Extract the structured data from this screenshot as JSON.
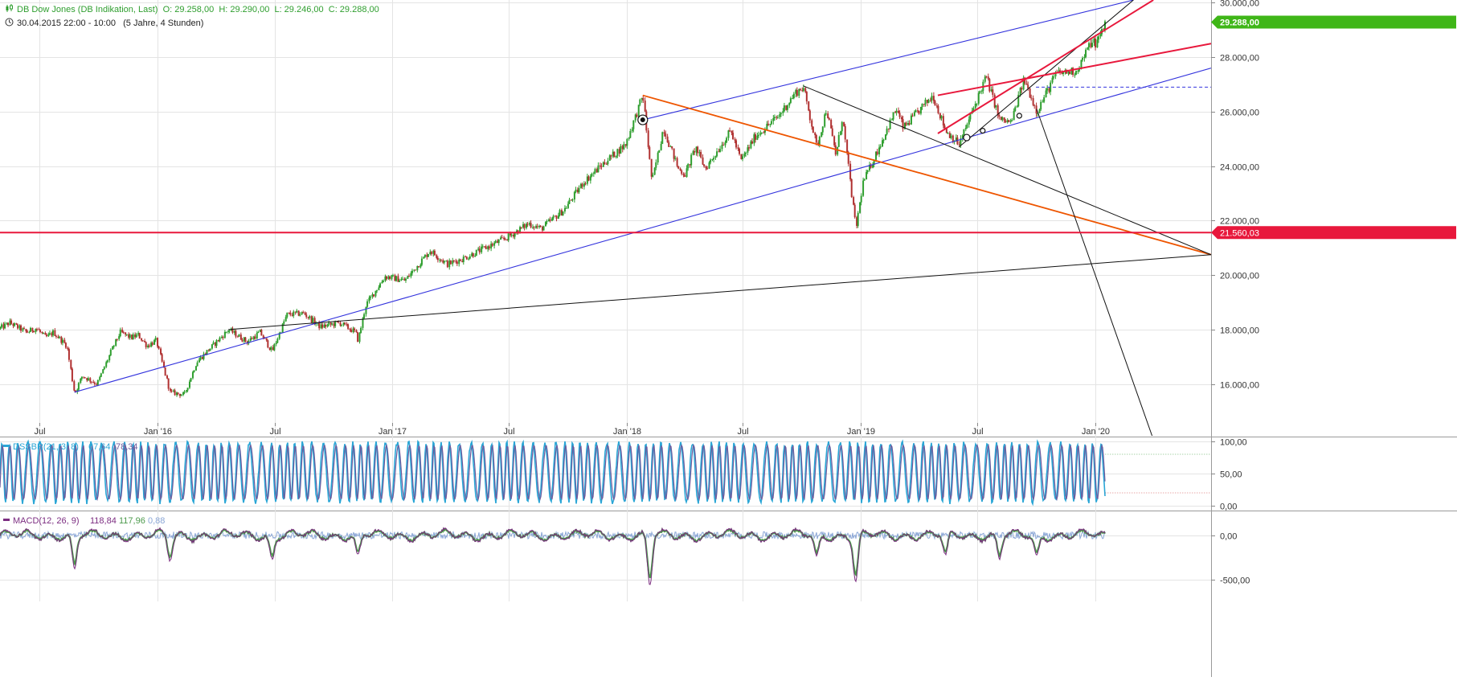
{
  "header": {
    "title": "DB Dow Jones (DB Indikation, Last)",
    "open": "O: 29.258,00",
    "high": "H: 29.290,00",
    "low": "L: 29.246,00",
    "close": "C: 29.288,00",
    "period": "30.04.2015 22:00 - 10:00",
    "period_detail": "(5 Jahre, 4 Stunden)"
  },
  "colors": {
    "up": "#2e9e2e",
    "down": "#b03030",
    "blue_line": "#3333dd",
    "red_line": "#e8183c",
    "orange_line": "#ee5500",
    "black_line": "#111111",
    "dss": "#2aa6d6",
    "dss_signal": "#6d5a9c",
    "macd": "#7b2c80",
    "macd_signal": "#4c9a4c",
    "macd_hist": "#8aa6d6",
    "price_tag": "#3fb618",
    "level_tag": "#e8183c"
  },
  "chart_data": [
    {
      "type": "line",
      "title": "DB Dow Jones (DB Indikation, Last)",
      "x_labels": [
        "Jul",
        "Jan '16",
        "Jul",
        "Jan '17",
        "Jul",
        "Jan '18",
        "Jul",
        "Jan '19",
        "Jul",
        "Jan '20"
      ],
      "x_label_dates": [
        "2015-07-01",
        "2016-01-01",
        "2016-07-01",
        "2017-01-01",
        "2017-07-01",
        "2018-01-01",
        "2018-07-01",
        "2019-01-01",
        "2019-07-01",
        "2020-01-01"
      ],
      "y_ticks": [
        "16.000,00",
        "18.000,00",
        "20.000,00",
        "22.000,00",
        "24.000,00",
        "26.000,00",
        "28.000,00",
        "30.000,00"
      ],
      "y_tick_values": [
        16000,
        18000,
        20000,
        22000,
        24000,
        26000,
        28000,
        30000
      ],
      "ylim": [
        14100,
        30100
      ],
      "xlim": [
        "2015-04-30",
        "2020-06-30"
      ],
      "grid": true,
      "series": [
        {
          "values": [
            {
              "x": "2015-04-30",
              "y": 18050
            },
            {
              "x": "2015-05-15",
              "y": 18250
            },
            {
              "x": "2015-06-10",
              "y": 17900
            },
            {
              "x": "2015-06-25",
              "y": 18050
            },
            {
              "x": "2015-07-10",
              "y": 17700
            },
            {
              "x": "2015-07-22",
              "y": 17900
            },
            {
              "x": "2015-08-12",
              "y": 17400
            },
            {
              "x": "2015-08-24",
              "y": 15650
            },
            {
              "x": "2015-09-05",
              "y": 16300
            },
            {
              "x": "2015-09-28",
              "y": 16000
            },
            {
              "x": "2015-10-20",
              "y": 17200
            },
            {
              "x": "2015-11-03",
              "y": 17900
            },
            {
              "x": "2015-11-20",
              "y": 17700
            },
            {
              "x": "2015-12-01",
              "y": 17800
            },
            {
              "x": "2015-12-15",
              "y": 17400
            },
            {
              "x": "2015-12-29",
              "y": 17600
            },
            {
              "x": "2016-01-12",
              "y": 16400
            },
            {
              "x": "2016-01-20",
              "y": 15700
            },
            {
              "x": "2016-02-11",
              "y": 15600
            },
            {
              "x": "2016-03-01",
              "y": 16800
            },
            {
              "x": "2016-04-20",
              "y": 18000
            },
            {
              "x": "2016-05-19",
              "y": 17550
            },
            {
              "x": "2016-06-08",
              "y": 17900
            },
            {
              "x": "2016-06-27",
              "y": 17200
            },
            {
              "x": "2016-07-20",
              "y": 18550
            },
            {
              "x": "2016-08-15",
              "y": 18600
            },
            {
              "x": "2016-09-10",
              "y": 18100
            },
            {
              "x": "2016-10-10",
              "y": 18250
            },
            {
              "x": "2016-11-04",
              "y": 17900
            },
            {
              "x": "2016-11-08",
              "y": 17600
            },
            {
              "x": "2016-11-20",
              "y": 18900
            },
            {
              "x": "2016-12-20",
              "y": 19950
            },
            {
              "x": "2017-01-20",
              "y": 19800
            },
            {
              "x": "2017-02-28",
              "y": 20900
            },
            {
              "x": "2017-03-27",
              "y": 20400
            },
            {
              "x": "2017-04-20",
              "y": 20600
            },
            {
              "x": "2017-05-30",
              "y": 21050
            },
            {
              "x": "2017-06-30",
              "y": 21400
            },
            {
              "x": "2017-08-01",
              "y": 21900
            },
            {
              "x": "2017-08-20",
              "y": 21700
            },
            {
              "x": "2017-09-25",
              "y": 22400
            },
            {
              "x": "2017-10-25",
              "y": 23400
            },
            {
              "x": "2017-11-30",
              "y": 24200
            },
            {
              "x": "2017-12-30",
              "y": 24800
            },
            {
              "x": "2018-01-26",
              "y": 26600
            },
            {
              "x": "2018-02-05",
              "y": 24300
            },
            {
              "x": "2018-02-09",
              "y": 23400
            },
            {
              "x": "2018-02-27",
              "y": 25400
            },
            {
              "x": "2018-03-22",
              "y": 23900
            },
            {
              "x": "2018-04-02",
              "y": 23700
            },
            {
              "x": "2018-04-18",
              "y": 24700
            },
            {
              "x": "2018-05-03",
              "y": 23900
            },
            {
              "x": "2018-06-12",
              "y": 25300
            },
            {
              "x": "2018-06-28",
              "y": 24200
            },
            {
              "x": "2018-07-20",
              "y": 25100
            },
            {
              "x": "2018-08-24",
              "y": 25800
            },
            {
              "x": "2018-09-21",
              "y": 26700
            },
            {
              "x": "2018-10-03",
              "y": 26900
            },
            {
              "x": "2018-10-24",
              "y": 24700
            },
            {
              "x": "2018-11-08",
              "y": 26100
            },
            {
              "x": "2018-11-23",
              "y": 24400
            },
            {
              "x": "2018-12-03",
              "y": 25800
            },
            {
              "x": "2018-12-24",
              "y": 21700
            },
            {
              "x": "2019-01-04",
              "y": 23400
            },
            {
              "x": "2019-02-25",
              "y": 26100
            },
            {
              "x": "2019-03-08",
              "y": 25400
            },
            {
              "x": "2019-04-23",
              "y": 26600
            },
            {
              "x": "2019-05-13",
              "y": 25300
            },
            {
              "x": "2019-06-03",
              "y": 24800
            },
            {
              "x": "2019-07-15",
              "y": 27300
            },
            {
              "x": "2019-08-05",
              "y": 25700
            },
            {
              "x": "2019-08-23",
              "y": 25600
            },
            {
              "x": "2019-09-12",
              "y": 27200
            },
            {
              "x": "2019-10-02",
              "y": 26000
            },
            {
              "x": "2019-11-01",
              "y": 27400
            },
            {
              "x": "2019-12-03",
              "y": 27500
            },
            {
              "x": "2019-12-27",
              "y": 28600
            },
            {
              "x": "2020-01-03",
              "y": 28500
            },
            {
              "x": "2020-01-14",
              "y": 29100
            },
            {
              "x": "2020-01-17",
              "y": 29288
            }
          ]
        }
      ],
      "price_tag": {
        "value": 29288,
        "label": "29.288,00"
      },
      "horizontal_levels": [
        {
          "value": 21560.03,
          "label": "21.560,03",
          "color": "red",
          "style": "solid"
        },
        {
          "value": 26900,
          "label": "",
          "color": "blue",
          "style": "dashed",
          "from": "2019-10-01"
        }
      ],
      "trendlines": [
        {
          "color": "blue",
          "points": [
            {
              "x": "2015-08-24",
              "y": 15700
            },
            {
              "x": "2020-06-30",
              "y": 27600
            }
          ]
        },
        {
          "color": "blue",
          "points": [
            {
              "x": "2018-01-26",
              "y": 25700
            },
            {
              "x": "2020-03-01",
              "y": 30100
            }
          ]
        },
        {
          "color": "orange",
          "points": [
            {
              "x": "2018-01-26",
              "y": 26600
            },
            {
              "x": "2020-06-30",
              "y": 20750
            }
          ]
        },
        {
          "color": "black",
          "points": [
            {
              "x": "2016-04-20",
              "y": 18000
            },
            {
              "x": "2020-06-30",
              "y": 20750
            }
          ]
        },
        {
          "color": "black",
          "points": [
            {
              "x": "2018-10-03",
              "y": 26950
            },
            {
              "x": "2020-06-30",
              "y": 20750
            }
          ]
        },
        {
          "color": "black",
          "points": [
            {
              "x": "2019-06-03",
              "y": 24700
            },
            {
              "x": "2020-03-01",
              "y": 30100
            }
          ]
        },
        {
          "color": "black",
          "points": [
            {
              "x": "2019-10-02",
              "y": 26100
            },
            {
              "x": "2020-03-30",
              "y": 14100
            }
          ]
        },
        {
          "color": "red",
          "points": [
            {
              "x": "2019-05-01",
              "y": 26600
            },
            {
              "x": "2020-06-30",
              "y": 28500
            }
          ]
        },
        {
          "color": "red",
          "points": [
            {
              "x": "2019-05-01",
              "y": 25200
            },
            {
              "x": "2020-04-01",
              "y": 30100
            }
          ]
        }
      ]
    },
    {
      "type": "line",
      "title": "DSSBR(21, 3, 8)",
      "readouts": [
        "67,64",
        "78,34"
      ],
      "y_ticks": [
        "100,00",
        "50,00",
        "0,00"
      ],
      "y_tick_values": [
        100,
        50,
        0
      ],
      "ylim": [
        -5,
        105
      ],
      "reference_levels": [
        80,
        20
      ],
      "series": [
        {
          "range": [
            0,
            100
          ],
          "pattern": "oscillating between approx. 5 and 100"
        },
        {
          "range": [
            0,
            100
          ],
          "pattern": "signal line, oscillating between approx. 5 and 100"
        }
      ]
    },
    {
      "type": "line",
      "title": "MACD(12, 26, 9)",
      "readouts": [
        "118,84",
        "117,96",
        "0,88"
      ],
      "y_ticks": [
        "0,00",
        "-500,00"
      ],
      "y_tick_values": [
        0,
        -500
      ],
      "ylim": [
        -560,
        260
      ],
      "series": [
        {
          "range": [
            -580,
            200
          ],
          "pattern": "MACD line"
        },
        {
          "range": [
            -560,
            180
          ],
          "pattern": "signal line"
        },
        {
          "range": [
            -60,
            60
          ],
          "pattern": "histogram"
        }
      ]
    }
  ]
}
